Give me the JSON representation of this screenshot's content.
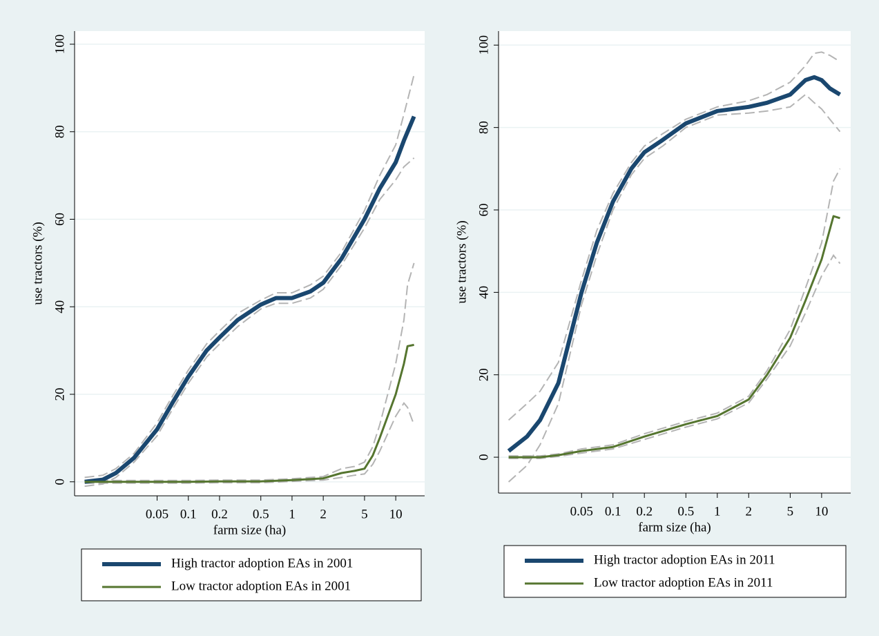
{
  "chart_data": [
    {
      "type": "line",
      "xlabel": "farm size (ha)",
      "ylabel": "use tractors (%)",
      "log_x": true,
      "grid": true,
      "legend": "bottom",
      "xlim": [
        0.008,
        19
      ],
      "xticks": [
        0.05,
        0.1,
        0.2,
        0.5,
        1,
        2,
        5,
        10
      ],
      "ylim": [
        -3.2,
        103
      ],
      "yticks": [
        0,
        20,
        40,
        60,
        80,
        100
      ],
      "ci_color": "#b4b4b4",
      "series": [
        {
          "name": "High tractor adoption EAs in 2001",
          "color": "#1a476f",
          "line_width": 6,
          "x": [
            0.01,
            0.015,
            0.02,
            0.03,
            0.05,
            0.07,
            0.1,
            0.15,
            0.2,
            0.3,
            0.5,
            0.7,
            1,
            1.5,
            2,
            3,
            5,
            7,
            10,
            12,
            15
          ],
          "values": [
            0,
            0.5,
            2,
            5.5,
            12,
            18,
            24,
            30,
            33,
            37,
            40.5,
            42,
            42,
            43.5,
            45.5,
            51,
            60,
            67,
            73,
            78,
            83.5
          ],
          "lower": [
            -1,
            -0.5,
            1,
            4.5,
            10.5,
            16.5,
            22.5,
            28.5,
            31.5,
            35.5,
            39.5,
            40.8,
            40.8,
            42,
            44,
            49.5,
            58,
            64.5,
            69,
            72,
            74
          ],
          "upper": [
            1,
            1.5,
            3,
            6.5,
            13.5,
            19.5,
            25.5,
            31.5,
            34.5,
            38.5,
            41.5,
            43.2,
            43.2,
            45,
            47,
            52.5,
            62,
            70,
            77,
            84,
            93
          ]
        },
        {
          "name": "Low tractor adoption EAs in 2001",
          "color": "#55752f",
          "line_width": 3,
          "x": [
            0.01,
            0.05,
            0.1,
            0.2,
            0.5,
            1,
            2,
            3,
            4,
            5,
            6,
            7,
            10,
            12,
            13,
            15
          ],
          "values": [
            0,
            0,
            0,
            0.1,
            0.1,
            0.4,
            0.8,
            2,
            2.5,
            3,
            6,
            10,
            20,
            27,
            31,
            31.3
          ],
          "lower": [
            -0.3,
            -0.3,
            -0.3,
            -0.2,
            -0.2,
            0.1,
            0.4,
            1,
            1.5,
            1.8,
            4,
            7,
            15,
            18,
            17,
            13
          ],
          "upper": [
            0.3,
            0.3,
            0.3,
            0.4,
            0.4,
            0.7,
            1.2,
            3,
            3.5,
            4.5,
            8,
            13,
            27,
            37,
            45,
            50
          ]
        }
      ]
    },
    {
      "type": "line",
      "xlabel": "farm size (ha)",
      "ylabel": "use tractors (%)",
      "log_x": true,
      "grid": true,
      "legend": "bottom",
      "xlim": [
        0.008,
        19
      ],
      "xticks": [
        0.05,
        0.1,
        0.2,
        0.5,
        1,
        2,
        5,
        10
      ],
      "ylim": [
        -8.7,
        103.4
      ],
      "yticks": [
        0,
        20,
        40,
        60,
        80,
        100
      ],
      "ci_color": "#b4b4b4",
      "series": [
        {
          "name": "High tractor adoption EAs in 2011",
          "color": "#1a476f",
          "line_width": 6,
          "x": [
            0.01,
            0.015,
            0.02,
            0.03,
            0.05,
            0.07,
            0.1,
            0.15,
            0.2,
            0.3,
            0.5,
            1,
            2,
            3,
            5,
            7,
            8.5,
            10,
            12,
            15
          ],
          "values": [
            1.5,
            5,
            9,
            18,
            40,
            52,
            62,
            70,
            74,
            77,
            81,
            84,
            85,
            86,
            88,
            91.5,
            92.2,
            91.5,
            89.5,
            88
          ],
          "lower": [
            -6,
            -2,
            3,
            13,
            37,
            49,
            60,
            68.5,
            72.5,
            75.5,
            80,
            83,
            83.5,
            84,
            85,
            88,
            86,
            84.5,
            82,
            79
          ],
          "upper": [
            9,
            13,
            16,
            23,
            43,
            55,
            64,
            71.5,
            75.5,
            78.5,
            82,
            85,
            86.5,
            88,
            91,
            95,
            98,
            98.3,
            97.5,
            96
          ]
        },
        {
          "name": "Low tractor adoption EAs in 2011",
          "color": "#55752f",
          "line_width": 3,
          "x": [
            0.01,
            0.02,
            0.03,
            0.05,
            0.1,
            0.2,
            0.5,
            1,
            2,
            3,
            5,
            7,
            10,
            13,
            15
          ],
          "values": [
            0,
            0,
            0.5,
            1.5,
            2.5,
            5,
            8,
            10,
            14,
            20,
            29,
            38,
            48,
            58.5,
            58
          ],
          "lower": [
            -0.3,
            -0.3,
            0.2,
            1,
            2,
            4.3,
            7.3,
            9.3,
            13.2,
            19,
            27,
            35,
            44,
            49,
            47
          ],
          "upper": [
            0.3,
            0.3,
            0.8,
            2,
            3,
            5.7,
            8.7,
            10.7,
            14.8,
            21,
            31,
            41,
            52,
            67,
            70
          ]
        }
      ]
    }
  ]
}
